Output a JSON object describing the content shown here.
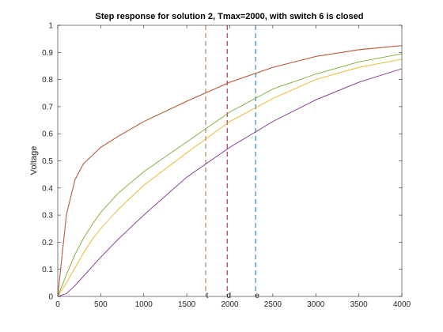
{
  "chart_data": {
    "type": "line",
    "title": "Step response for solution 2, Tmax=2000, with switch 6 is closed",
    "xlabel": "",
    "ylabel": "Voltage",
    "xlim": [
      0,
      4000
    ],
    "ylim": [
      0,
      1
    ],
    "xticks": [
      0,
      500,
      1000,
      1500,
      2000,
      2500,
      3000,
      3500,
      4000
    ],
    "xtick_labels": [
      "0",
      "500",
      "1000",
      "1500",
      "2000",
      "2500",
      "3000",
      "3500",
      "4000"
    ],
    "yticks": [
      0,
      0.1,
      0.2,
      0.3,
      0.4,
      0.5,
      0.6,
      0.7,
      0.8,
      0.9,
      1
    ],
    "ytick_labels": [
      "0",
      "0.1",
      "0.2",
      "0.3",
      "0.4",
      "0.5",
      "0.6",
      "0.7",
      "0.8",
      "0.9",
      "1"
    ],
    "grid": false,
    "x": [
      0,
      100,
      200,
      300,
      400,
      500,
      700,
      1000,
      1500,
      2000,
      2500,
      3000,
      3500,
      4000
    ],
    "series": [
      {
        "color": "#0072BD",
        "values": [
          0,
          0.3,
          0.43,
          0.49,
          0.52,
          0.55,
          0.59,
          0.645,
          0.72,
          0.79,
          0.845,
          0.885,
          0.91,
          0.925
        ]
      },
      {
        "color": "#D95319",
        "values": [
          0,
          0.3,
          0.43,
          0.49,
          0.52,
          0.55,
          0.59,
          0.645,
          0.72,
          0.79,
          0.845,
          0.885,
          0.91,
          0.925
        ]
      },
      {
        "color": "#77AC30",
        "values": [
          0,
          0.08,
          0.155,
          0.215,
          0.265,
          0.31,
          0.38,
          0.46,
          0.57,
          0.68,
          0.765,
          0.82,
          0.865,
          0.895
        ]
      },
      {
        "color": "#EDB120",
        "values": [
          0,
          0.05,
          0.105,
          0.16,
          0.21,
          0.25,
          0.32,
          0.41,
          0.53,
          0.645,
          0.73,
          0.8,
          0.845,
          0.875
        ]
      },
      {
        "color": "#7E2F8E",
        "values": [
          0,
          0.01,
          0.04,
          0.075,
          0.11,
          0.145,
          0.21,
          0.3,
          0.44,
          0.55,
          0.645,
          0.725,
          0.79,
          0.84
        ]
      }
    ],
    "markers": [
      {
        "label": "t",
        "x": 1720,
        "color": "#A2713C"
      },
      {
        "label": "d",
        "x": 1970,
        "color": "#A2142F"
      },
      {
        "label": "e",
        "x": 2300,
        "color": "#0072BD"
      }
    ]
  }
}
